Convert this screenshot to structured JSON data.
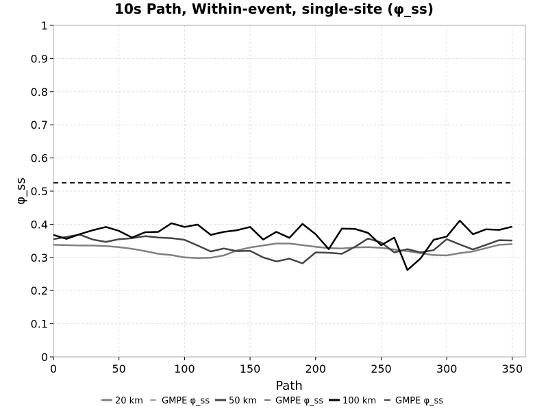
{
  "chart_data": {
    "type": "line",
    "title": "10s Path, Within-event, single-site (φ_ss)",
    "xlabel": "Path",
    "ylabel": "φ_ss",
    "xlim": [
      0,
      360
    ],
    "ylim": [
      0,
      1
    ],
    "xticks": [
      0,
      50,
      100,
      150,
      200,
      250,
      300,
      350
    ],
    "yticks": [
      0,
      0.1,
      0.2,
      0.3,
      0.4,
      0.5,
      0.6,
      0.7,
      0.8,
      0.9,
      1
    ],
    "ytick_labels": [
      "0",
      "0.1",
      "0.2",
      "0.3",
      "0.4",
      "0.5",
      "0.6",
      "0.7",
      "0.8",
      "0.9",
      "1"
    ],
    "grid": true,
    "legend_position": "bottom",
    "x": [
      0,
      10,
      20,
      30,
      40,
      50,
      60,
      70,
      80,
      90,
      100,
      110,
      120,
      130,
      140,
      150,
      160,
      170,
      180,
      190,
      200,
      210,
      220,
      230,
      240,
      250,
      260,
      270,
      280,
      290,
      300,
      310,
      320,
      330,
      340,
      350
    ],
    "series": [
      {
        "name": "20 km",
        "style": "solid",
        "color": "#808080",
        "values": [
          0.338,
          0.337,
          0.336,
          0.336,
          0.334,
          0.331,
          0.326,
          0.319,
          0.311,
          0.307,
          0.3,
          0.298,
          0.299,
          0.306,
          0.321,
          0.33,
          0.336,
          0.342,
          0.342,
          0.337,
          0.332,
          0.328,
          0.327,
          0.33,
          0.331,
          0.329,
          0.324,
          0.319,
          0.313,
          0.307,
          0.306,
          0.313,
          0.318,
          0.328,
          0.338,
          0.34
        ]
      },
      {
        "name": "GMPE φ_ss",
        "style": "dashed",
        "color": "#808080",
        "values": [
          0.525,
          0.525,
          0.525,
          0.525,
          0.525,
          0.525,
          0.525,
          0.525,
          0.525,
          0.525,
          0.525,
          0.525,
          0.525,
          0.525,
          0.525,
          0.525,
          0.525,
          0.525,
          0.525,
          0.525,
          0.525,
          0.525,
          0.525,
          0.525,
          0.525,
          0.525,
          0.525,
          0.525,
          0.525,
          0.525,
          0.525,
          0.525,
          0.525,
          0.525,
          0.525,
          0.525
        ]
      },
      {
        "name": "50 km",
        "style": "solid",
        "color": "#444444",
        "values": [
          0.355,
          0.362,
          0.369,
          0.354,
          0.347,
          0.355,
          0.358,
          0.364,
          0.36,
          0.358,
          0.353,
          0.336,
          0.318,
          0.327,
          0.319,
          0.32,
          0.3,
          0.288,
          0.296,
          0.282,
          0.315,
          0.314,
          0.311,
          0.332,
          0.357,
          0.345,
          0.315,
          0.325,
          0.315,
          0.322,
          0.355,
          0.339,
          0.324,
          0.338,
          0.352,
          0.351
        ]
      },
      {
        "name": "GMPE φ_ss",
        "style": "dashed",
        "color": "#444444",
        "values": [
          0.525,
          0.525,
          0.525,
          0.525,
          0.525,
          0.525,
          0.525,
          0.525,
          0.525,
          0.525,
          0.525,
          0.525,
          0.525,
          0.525,
          0.525,
          0.525,
          0.525,
          0.525,
          0.525,
          0.525,
          0.525,
          0.525,
          0.525,
          0.525,
          0.525,
          0.525,
          0.525,
          0.525,
          0.525,
          0.525,
          0.525,
          0.525,
          0.525,
          0.525,
          0.525,
          0.525
        ]
      },
      {
        "name": "100 km",
        "style": "solid",
        "color": "#000000",
        "values": [
          0.368,
          0.356,
          0.37,
          0.382,
          0.392,
          0.38,
          0.36,
          0.376,
          0.377,
          0.403,
          0.392,
          0.399,
          0.368,
          0.377,
          0.382,
          0.392,
          0.354,
          0.377,
          0.359,
          0.401,
          0.37,
          0.325,
          0.387,
          0.386,
          0.374,
          0.337,
          0.36,
          0.262,
          0.297,
          0.353,
          0.363,
          0.411,
          0.37,
          0.385,
          0.383,
          0.393
        ]
      },
      {
        "name": "GMPE φ_ss",
        "style": "dashed",
        "color": "#000000",
        "values": [
          0.525,
          0.525,
          0.525,
          0.525,
          0.525,
          0.525,
          0.525,
          0.525,
          0.525,
          0.525,
          0.525,
          0.525,
          0.525,
          0.525,
          0.525,
          0.525,
          0.525,
          0.525,
          0.525,
          0.525,
          0.525,
          0.525,
          0.525,
          0.525,
          0.525,
          0.525,
          0.525,
          0.525,
          0.525,
          0.525,
          0.525,
          0.525,
          0.525,
          0.525,
          0.525,
          0.525
        ]
      }
    ]
  }
}
